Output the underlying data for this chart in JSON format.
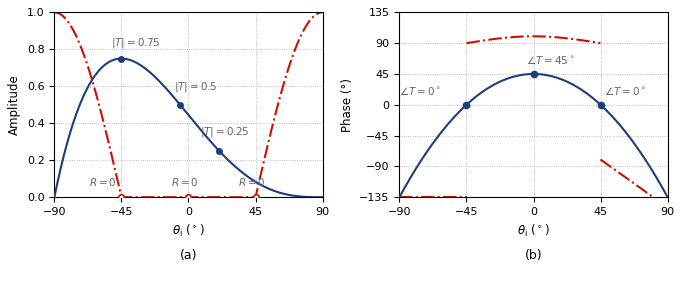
{
  "title_a": "(a)",
  "title_b": "(b)",
  "ylabel_a": "Amplitude",
  "ylabel_b": "Phase (°)",
  "xlim": [
    -90,
    90
  ],
  "xticks": [
    -90,
    -45,
    0,
    45,
    90
  ],
  "ylim_a": [
    0,
    1.0
  ],
  "yticks_a": [
    0,
    0.2,
    0.4,
    0.6,
    0.8,
    1.0
  ],
  "ylim_b": [
    -135,
    135
  ],
  "yticks_b": [
    -135,
    -90,
    -45,
    0,
    45,
    90,
    135
  ],
  "blue_color": "#1f3d7a",
  "red_color": "#cc1100",
  "annot_color": "#666666",
  "lw": 1.5,
  "figsize": [
    6.83,
    2.83
  ],
  "dpi": 100
}
